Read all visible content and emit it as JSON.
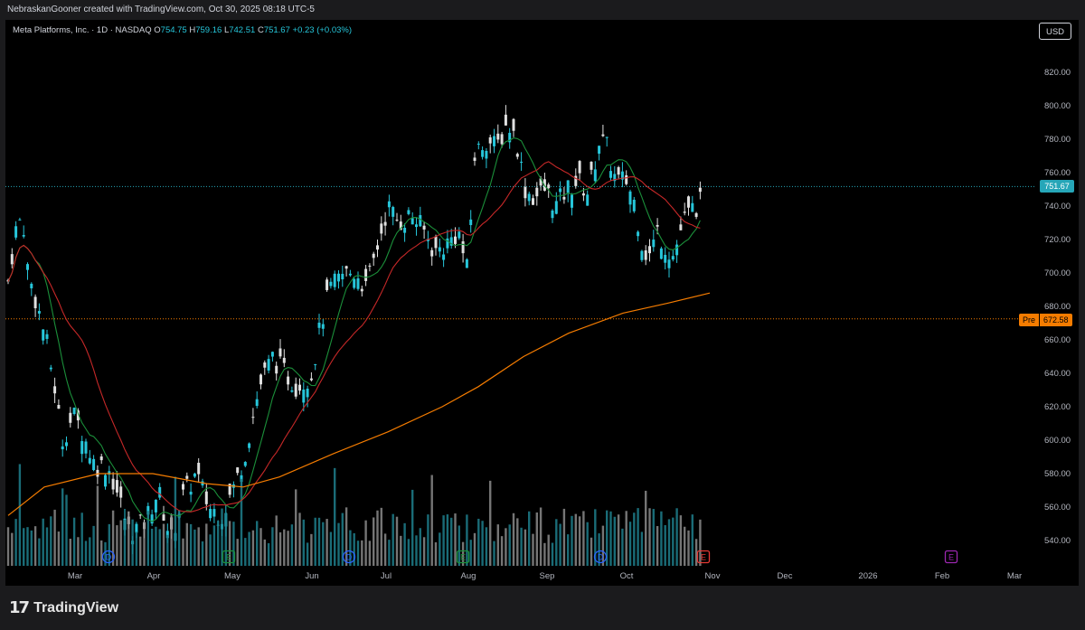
{
  "header": {
    "attribution": "NebraskanGooner created with TradingView.com, Oct 30, 2025 08:18 UTC-5"
  },
  "legend": {
    "symbol": "Meta Platforms, Inc. · 1D · NASDAQ",
    "open_label": "O",
    "open": "754.75",
    "high_label": "H",
    "high": "759.16",
    "low_label": "L",
    "low": "742.51",
    "close_label": "C",
    "close": "751.67",
    "change": "+0.23 (+0.03%)"
  },
  "currency_button": "USD",
  "price_axis": {
    "labels": [
      "820.00",
      "800.00",
      "780.00",
      "760.00",
      "740.00",
      "720.00",
      "700.00",
      "680.00",
      "660.00",
      "640.00",
      "620.00",
      "600.00",
      "580.00",
      "560.00",
      "540.00"
    ],
    "values": [
      820,
      800,
      780,
      760,
      740,
      720,
      700,
      680,
      660,
      640,
      620,
      600,
      580,
      560,
      540
    ]
  },
  "time_axis": {
    "labels": [
      "Mar",
      "Apr",
      "May",
      "Jun",
      "Jul",
      "Aug",
      "Sep",
      "Oct",
      "Nov",
      "Dec",
      "2026",
      "Feb",
      "Mar"
    ]
  },
  "last_price_label": "751.67",
  "premarket": {
    "tag": "Pre",
    "value": "672.58"
  },
  "event_markers": [
    "D",
    "E",
    "D",
    "E",
    "D",
    "E",
    "E"
  ],
  "branding": {
    "name": "TradingView"
  },
  "colors": {
    "up": "#26c6da",
    "down": "#e0e0e0",
    "ma_fast": "#1b8f3a",
    "ma_mid": "#c62828",
    "ma_slow": "#f57c00",
    "last_price_line": "#26a6b8",
    "premarket_line": "#f57c00"
  }
}
